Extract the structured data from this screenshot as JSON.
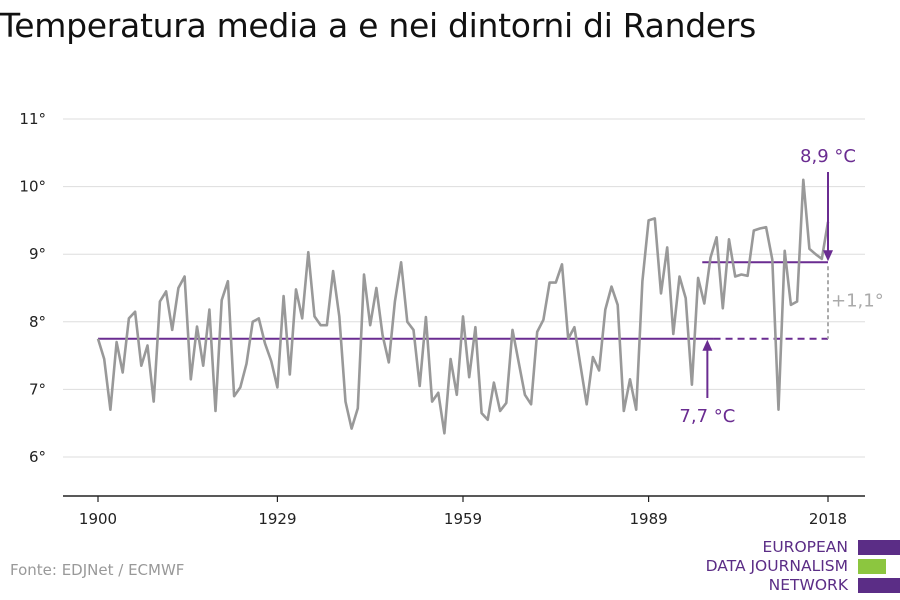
{
  "title": "Temperatura media a e nei dintorni di Randers",
  "source": "Fonte: EDJNet / ECMWF",
  "logo": {
    "lines": [
      "EUROPEAN",
      "DATA JOURNALISM",
      "NETWORK"
    ]
  },
  "colors": {
    "series": "#999999",
    "accent": "#6a2c91",
    "grid": "#dddddd",
    "logo_purple": "#5b2d86",
    "logo_green": "#8cc63f"
  },
  "chart_data": {
    "type": "line",
    "title": "Temperatura media a e nei dintorni di Randers",
    "xlabel": "",
    "ylabel": "",
    "xlim": [
      1900,
      2018
    ],
    "ylim": [
      5.5,
      11.2
    ],
    "x_ticks": [
      1900,
      1929,
      1959,
      1989,
      2018
    ],
    "y_ticks": [
      6,
      7,
      8,
      9,
      10,
      11
    ],
    "y_tick_labels": [
      "6°",
      "7°",
      "8°",
      "9°",
      "10°",
      "11°"
    ],
    "grid": true,
    "series": [
      {
        "x": [
          1900,
          1901,
          1902,
          1903,
          1904,
          1905,
          1906,
          1907,
          1908,
          1909,
          1910,
          1911,
          1912,
          1913,
          1914,
          1915,
          1916,
          1917,
          1918,
          1919,
          1920,
          1921,
          1922,
          1923,
          1924,
          1925,
          1926,
          1927,
          1928,
          1929,
          1930,
          1931,
          1932,
          1933,
          1934,
          1935,
          1936,
          1937,
          1938,
          1939,
          1940,
          1941,
          1942,
          1943,
          1944,
          1945,
          1946,
          1947,
          1948,
          1949,
          1950,
          1951,
          1952,
          1953,
          1954,
          1955,
          1956,
          1957,
          1958,
          1959,
          1960,
          1961,
          1962,
          1963,
          1964,
          1965,
          1966,
          1967,
          1968,
          1969,
          1970,
          1971,
          1972,
          1973,
          1974,
          1975,
          1976,
          1977,
          1978,
          1979,
          1980,
          1981,
          1982,
          1983,
          1984,
          1985,
          1986,
          1987,
          1988,
          1989,
          1990,
          1991,
          1992,
          1993,
          1994,
          1995,
          1996,
          1997,
          1998,
          1999,
          2000,
          2001,
          2002,
          2003,
          2004,
          2005,
          2006,
          2007,
          2008,
          2009,
          2010,
          2011,
          2012,
          2013,
          2014,
          2015,
          2016,
          2017,
          2018
        ],
        "values": [
          7.75,
          7.45,
          6.7,
          7.7,
          7.25,
          8.05,
          8.15,
          7.35,
          7.65,
          6.82,
          8.3,
          8.45,
          7.88,
          8.5,
          8.67,
          7.15,
          7.93,
          7.35,
          8.18,
          6.68,
          8.32,
          8.6,
          6.9,
          7.03,
          7.38,
          8.0,
          8.05,
          7.68,
          7.42,
          7.03,
          8.38,
          7.22,
          8.48,
          8.05,
          9.03,
          8.08,
          7.95,
          7.95,
          8.75,
          8.08,
          6.82,
          6.42,
          6.72,
          8.7,
          7.95,
          8.5,
          7.8,
          7.4,
          8.3,
          8.88,
          8.0,
          7.88,
          7.05,
          8.07,
          6.82,
          6.95,
          6.35,
          7.45,
          6.92,
          8.08,
          7.18,
          7.92,
          6.65,
          6.55,
          7.1,
          6.68,
          6.8,
          7.88,
          7.4,
          6.92,
          6.78,
          7.85,
          8.03,
          8.58,
          8.58,
          8.85,
          7.75,
          7.92,
          7.35,
          6.78,
          7.48,
          7.28,
          8.18,
          8.52,
          8.25,
          6.68,
          7.15,
          6.7,
          8.6,
          9.5,
          9.53,
          8.42,
          9.1,
          7.82,
          8.67,
          8.35,
          7.07,
          8.65,
          8.27,
          8.95,
          9.25,
          8.2,
          9.22,
          8.67,
          8.7,
          8.68,
          9.35,
          9.38,
          9.4,
          8.92,
          6.7,
          9.05,
          8.25,
          8.3,
          10.1,
          9.08,
          9.0,
          8.93,
          9.48
        ]
      }
    ],
    "reference_lines": [
      {
        "label": "7,7 °C",
        "value": 7.75,
        "from_year": 1900,
        "to_year": 2018
      },
      {
        "label": "8,9 °C",
        "value": 8.88,
        "from_year": 1998,
        "to_year": 2018
      }
    ],
    "difference_label": "+1,1°"
  }
}
